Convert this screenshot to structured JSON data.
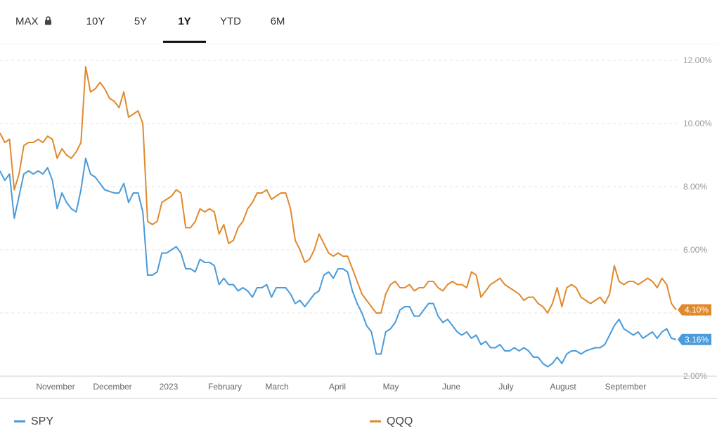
{
  "tabs": [
    {
      "label": "MAX",
      "locked": true
    },
    {
      "label": "10Y"
    },
    {
      "label": "5Y"
    },
    {
      "label": "1Y",
      "active": true
    },
    {
      "label": "YTD"
    },
    {
      "label": "6M"
    }
  ],
  "icons": {
    "lock": "lock-icon"
  },
  "colors": {
    "spy": "#4a9bd9",
    "qqq": "#e08a2e",
    "grid": "#e3e3e3",
    "axis_text": "#9a9a9a"
  },
  "chart_data": {
    "type": "line",
    "x_labels": [
      "November",
      "December",
      "2023",
      "February",
      "March",
      "April",
      "May",
      "June",
      "July",
      "August",
      "September"
    ],
    "y_tick_labels": [
      "2.00%",
      "4.00%",
      "6.00%",
      "8.00%",
      "10.00%",
      "12.00%"
    ],
    "y_ticks": [
      2,
      4,
      6,
      8,
      10,
      12
    ],
    "ylim": [
      2,
      12
    ],
    "series": [
      {
        "name": "SPY",
        "color": "#4a9bd9",
        "last_label": "3.16%",
        "values": [
          8.5,
          8.2,
          8.4,
          7.0,
          7.7,
          8.4,
          8.5,
          8.4,
          8.5,
          8.4,
          8.6,
          8.2,
          7.3,
          7.8,
          7.5,
          7.3,
          7.2,
          7.9,
          8.9,
          8.4,
          8.3,
          8.1,
          7.9,
          7.85,
          7.8,
          7.8,
          8.1,
          7.5,
          7.8,
          7.8,
          7.2,
          5.2,
          5.2,
          5.3,
          5.9,
          5.9,
          6.0,
          6.1,
          5.9,
          5.4,
          5.4,
          5.3,
          5.7,
          5.6,
          5.6,
          5.5,
          4.9,
          5.1,
          4.9,
          4.9,
          4.7,
          4.8,
          4.7,
          4.5,
          4.8,
          4.8,
          4.9,
          4.5,
          4.8,
          4.8,
          4.8,
          4.6,
          4.3,
          4.4,
          4.2,
          4.4,
          4.6,
          4.7,
          5.2,
          5.3,
          5.1,
          5.4,
          5.4,
          5.3,
          4.7,
          4.3,
          4.0,
          3.6,
          3.4,
          2.7,
          2.7,
          3.4,
          3.5,
          3.7,
          4.1,
          4.2,
          4.2,
          3.9,
          3.9,
          4.1,
          4.3,
          4.3,
          3.9,
          3.7,
          3.8,
          3.6,
          3.4,
          3.3,
          3.4,
          3.2,
          3.3,
          3.0,
          3.1,
          2.9,
          2.9,
          3.0,
          2.8,
          2.8,
          2.9,
          2.8,
          2.9,
          2.8,
          2.6,
          2.6,
          2.4,
          2.3,
          2.4,
          2.6,
          2.4,
          2.7,
          2.8,
          2.8,
          2.7,
          2.8,
          2.85,
          2.9,
          2.9,
          3.0,
          3.3,
          3.6,
          3.8,
          3.5,
          3.4,
          3.3,
          3.4,
          3.2,
          3.3,
          3.4,
          3.2,
          3.4,
          3.5,
          3.2,
          3.16
        ]
      },
      {
        "name": "QQQ",
        "color": "#e08a2e",
        "last_label": "4.10%",
        "values": [
          9.7,
          9.4,
          9.5,
          7.9,
          8.4,
          9.3,
          9.4,
          9.4,
          9.5,
          9.4,
          9.6,
          9.5,
          8.9,
          9.2,
          9.0,
          8.9,
          9.1,
          9.4,
          11.8,
          11.0,
          11.1,
          11.3,
          11.1,
          10.8,
          10.7,
          10.5,
          11.0,
          10.2,
          10.3,
          10.4,
          10.0,
          6.9,
          6.8,
          6.9,
          7.5,
          7.6,
          7.7,
          7.9,
          7.8,
          6.7,
          6.7,
          6.9,
          7.3,
          7.2,
          7.3,
          7.2,
          6.5,
          6.8,
          6.2,
          6.3,
          6.7,
          6.9,
          7.3,
          7.5,
          7.8,
          7.8,
          7.9,
          7.6,
          7.7,
          7.8,
          7.8,
          7.3,
          6.3,
          6.0,
          5.6,
          5.7,
          6.0,
          6.5,
          6.2,
          5.9,
          5.8,
          5.9,
          5.8,
          5.8,
          5.4,
          5.0,
          4.6,
          4.4,
          4.2,
          4.0,
          4.0,
          4.6,
          4.9,
          5.0,
          4.8,
          4.8,
          4.9,
          4.7,
          4.8,
          4.8,
          5.0,
          5.0,
          4.8,
          4.7,
          4.9,
          5.0,
          4.9,
          4.9,
          4.8,
          5.3,
          5.2,
          4.5,
          4.7,
          4.9,
          5.0,
          5.1,
          4.9,
          4.8,
          4.7,
          4.6,
          4.4,
          4.5,
          4.5,
          4.3,
          4.2,
          4.0,
          4.3,
          4.8,
          4.2,
          4.8,
          4.9,
          4.8,
          4.5,
          4.4,
          4.3,
          4.4,
          4.5,
          4.3,
          4.6,
          5.5,
          5.0,
          4.9,
          5.0,
          5.0,
          4.9,
          5.0,
          5.1,
          5.0,
          4.8,
          5.1,
          4.9,
          4.3,
          4.1
        ]
      }
    ]
  },
  "legend": [
    {
      "name": "SPY",
      "color": "#4a9bd9"
    },
    {
      "name": "QQQ",
      "color": "#e08a2e"
    }
  ]
}
